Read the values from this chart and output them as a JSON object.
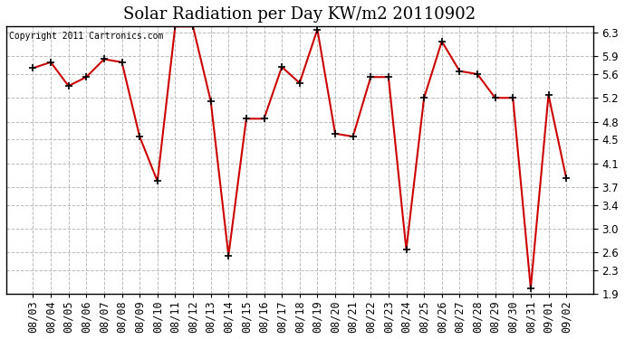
{
  "title": "Solar Radiation per Day KW/m2 20110902",
  "copyright_text": "Copyright 2011 Cartronics.com",
  "dates": [
    "08/03",
    "08/04",
    "08/05",
    "08/06",
    "08/07",
    "08/08",
    "08/09",
    "08/10",
    "08/11",
    "08/12",
    "08/13",
    "08/14",
    "08/15",
    "08/16",
    "08/17",
    "08/18",
    "08/19",
    "08/20",
    "08/21",
    "08/22",
    "08/23",
    "08/24",
    "08/25",
    "08/26",
    "08/27",
    "08/28",
    "08/29",
    "08/30",
    "08/31",
    "09/01",
    "09/02"
  ],
  "values": [
    5.7,
    5.8,
    5.4,
    5.55,
    5.85,
    5.8,
    4.55,
    3.8,
    6.4,
    6.4,
    5.15,
    2.55,
    4.85,
    4.85,
    5.72,
    5.45,
    6.35,
    4.6,
    4.55,
    5.55,
    5.55,
    2.65,
    5.2,
    6.15,
    5.65,
    5.6,
    5.2,
    5.2,
    2.0,
    5.25,
    3.85
  ],
  "ylim": [
    1.9,
    6.4
  ],
  "yticks": [
    1.9,
    2.3,
    2.6,
    3.0,
    3.4,
    3.7,
    4.1,
    4.5,
    4.8,
    5.2,
    5.6,
    5.9,
    6.3
  ],
  "line_color": "#cc0000",
  "marker": "+",
  "marker_color": "#000000",
  "bg_color": "#ffffff",
  "plot_bg_color": "#ffffff",
  "grid_color": "#bbbbbb",
  "title_fontsize": 13,
  "tick_fontsize": 8.5
}
